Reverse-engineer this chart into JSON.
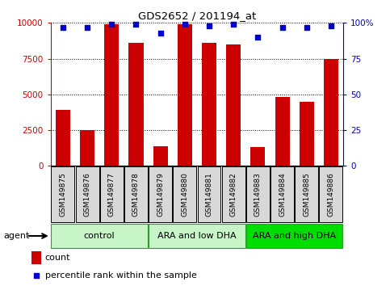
{
  "title": "GDS2652 / 201194_at",
  "samples": [
    "GSM149875",
    "GSM149876",
    "GSM149877",
    "GSM149878",
    "GSM149879",
    "GSM149880",
    "GSM149881",
    "GSM149882",
    "GSM149883",
    "GSM149884",
    "GSM149885",
    "GSM149886"
  ],
  "counts": [
    3900,
    2500,
    9900,
    8600,
    1400,
    9900,
    8600,
    8500,
    1300,
    4800,
    4500,
    7500
  ],
  "percentile_ranks": [
    97,
    97,
    99,
    99,
    93,
    99,
    98,
    99,
    90,
    97,
    97,
    98
  ],
  "groups": [
    {
      "label": "control",
      "start": 0,
      "end": 4,
      "color": "#c8f5c8"
    },
    {
      "label": "ARA and low DHA",
      "start": 4,
      "end": 8,
      "color": "#c8f5c8"
    },
    {
      "label": "ARA and high DHA",
      "start": 8,
      "end": 12,
      "color": "#00dd00"
    }
  ],
  "ylim_left": [
    0,
    10000
  ],
  "ylim_right": [
    0,
    100
  ],
  "yticks_left": [
    0,
    2500,
    5000,
    7500,
    10000
  ],
  "ytick_labels_left": [
    "0",
    "2500",
    "5000",
    "7500",
    "10000"
  ],
  "yticks_right": [
    0,
    25,
    50,
    75,
    100
  ],
  "ytick_labels_right": [
    "0",
    "25",
    "50",
    "75",
    "100%"
  ],
  "bar_color": "#cc0000",
  "dot_color": "#0000cc",
  "bg_color": "#ffffff",
  "grid_color": "#000000",
  "agent_label": "agent",
  "legend_count_label": "count",
  "legend_pct_label": "percentile rank within the sample",
  "xlabel_bg": "#d8d8d8",
  "group_border_color": "#339933"
}
